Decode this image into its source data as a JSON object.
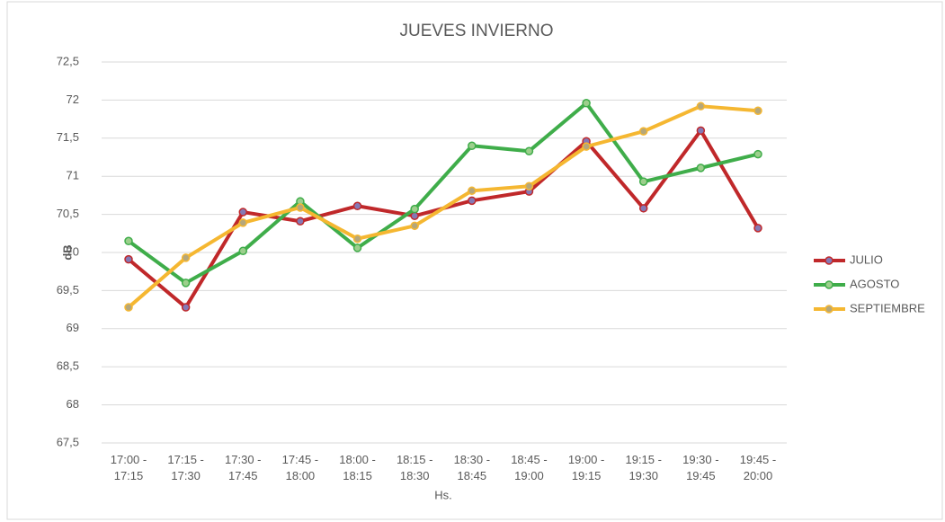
{
  "chart_data": {
    "type": "line",
    "title": "JUEVES INVIERNO",
    "x_label": "Hs.",
    "y_label": "dB",
    "categories": [
      "17:00 - 17:15",
      "17:15 - 17:30",
      "17:30 - 17:45",
      "17:45 - 18:00",
      "18:00 - 18:15",
      "18:15 - 18:30",
      "18:30 - 18:45",
      "18:45 - 19:00",
      "19:00 - 19:15",
      "19:15 - 19:30",
      "19:30 - 19:45",
      "19:45 - 20:00"
    ],
    "series": [
      {
        "name": "JULIO",
        "color": "#c0282a",
        "marker_color": "#8579b5",
        "values": [
          69.91,
          69.28,
          70.53,
          70.41,
          70.61,
          70.48,
          70.68,
          70.8,
          71.46,
          70.58,
          71.6,
          70.32
        ]
      },
      {
        "name": "AGOSTO",
        "color": "#3fad4a",
        "marker_color": "#9ccf8c",
        "values": [
          70.15,
          69.6,
          70.02,
          70.67,
          70.06,
          70.57,
          71.4,
          71.33,
          71.96,
          70.93,
          71.11,
          71.29
        ]
      },
      {
        "name": "SEPTIEMBRE",
        "color": "#f5b731",
        "marker_color": "#b5a77a",
        "values": [
          69.28,
          69.93,
          70.39,
          70.59,
          70.18,
          70.35,
          70.81,
          70.87,
          71.39,
          71.59,
          71.92,
          71.86
        ]
      }
    ],
    "ylim": [
      67.5,
      72.5
    ],
    "yticks": [
      {
        "value": 67.5,
        "label": "67,5"
      },
      68,
      {
        "value": 68.5,
        "label": "68,5"
      },
      69,
      {
        "value": 69.5,
        "label": "69,5"
      },
      70,
      {
        "value": 70.5,
        "label": "70,5"
      },
      71,
      {
        "value": 71.5,
        "label": "71,5"
      },
      72,
      {
        "value": 72.5,
        "label": "72,5"
      }
    ],
    "grid": true,
    "legend": "right"
  }
}
